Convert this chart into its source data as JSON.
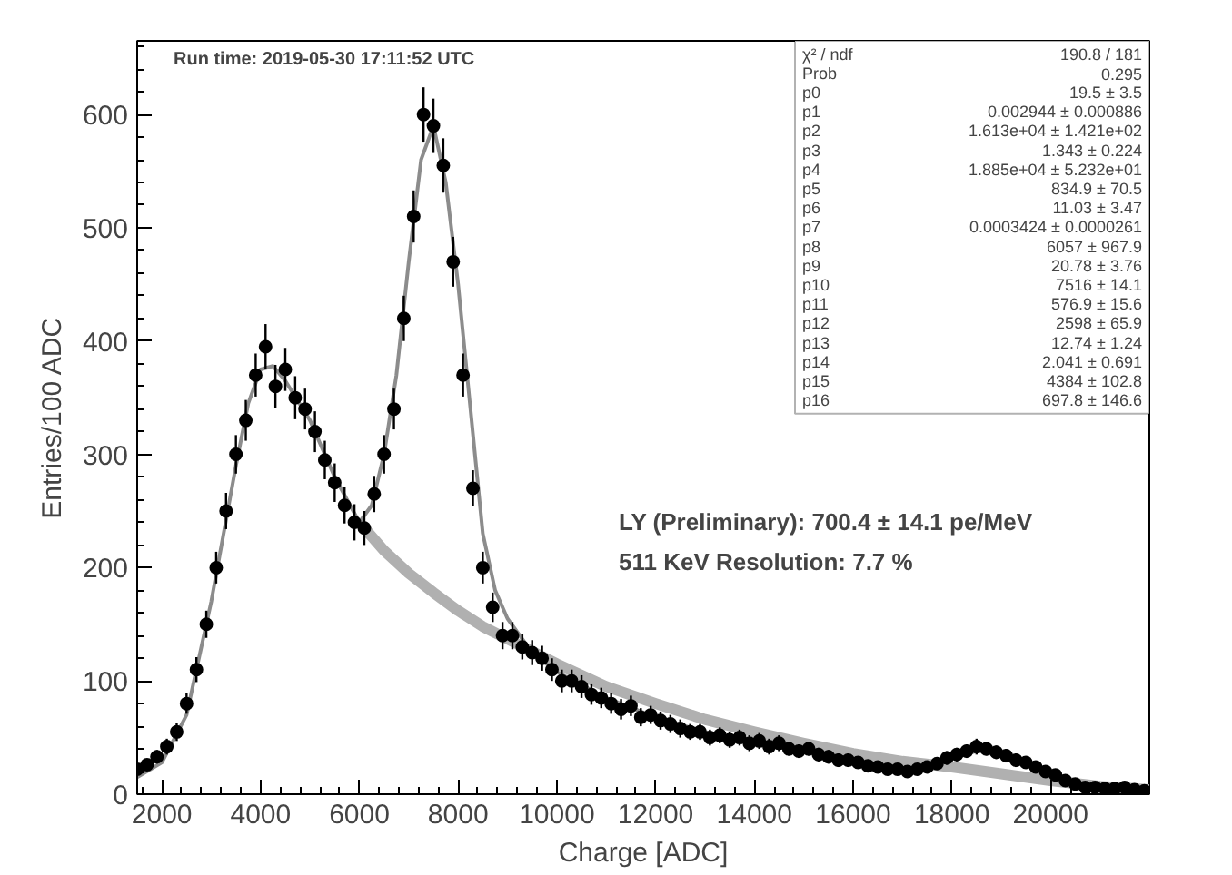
{
  "chart_data": {
    "type": "scatter",
    "xlabel": "Charge [ADC]",
    "ylabel": "Entries/100 ADC",
    "xlim": [
      1500,
      22000
    ],
    "ylim": [
      0,
      665
    ],
    "xticks": [
      2000,
      4000,
      6000,
      8000,
      10000,
      12000,
      14000,
      16000,
      18000,
      20000
    ],
    "yticks": [
      0,
      100,
      200,
      300,
      400,
      500,
      600
    ],
    "series": [
      {
        "marker": "circle",
        "color": "#000000",
        "x": [
          1500,
          1700,
          1900,
          2100,
          2300,
          2500,
          2700,
          2900,
          3100,
          3300,
          3500,
          3700,
          3900,
          4100,
          4300,
          4500,
          4700,
          4900,
          5100,
          5300,
          5500,
          5700,
          5900,
          6100,
          6300,
          6500,
          6700,
          6900,
          7100,
          7300,
          7500,
          7700,
          7900,
          8100,
          8300,
          8500,
          8700,
          8900,
          9100,
          9300,
          9500,
          9700,
          9900,
          10100,
          10300,
          10500,
          10700,
          10900,
          11100,
          11300,
          11500,
          11700,
          11900,
          12100,
          12300,
          12500,
          12700,
          12900,
          13100,
          13300,
          13500,
          13700,
          13900,
          14100,
          14300,
          14500,
          14700,
          14900,
          15100,
          15300,
          15500,
          15700,
          15900,
          16100,
          16300,
          16500,
          16700,
          16900,
          17100,
          17300,
          17500,
          17700,
          17900,
          18100,
          18300,
          18500,
          18700,
          18900,
          19100,
          19300,
          19500,
          19700,
          19900,
          20100,
          20300,
          20500,
          20700,
          20900,
          21100,
          21300,
          21500,
          21700,
          21900
        ],
        "values": [
          22,
          26,
          33,
          42,
          55,
          80,
          110,
          150,
          200,
          250,
          300,
          330,
          370,
          395,
          360,
          375,
          350,
          340,
          320,
          295,
          275,
          255,
          240,
          235,
          265,
          300,
          340,
          420,
          510,
          600,
          590,
          555,
          470,
          370,
          270,
          200,
          165,
          140,
          140,
          130,
          125,
          120,
          110,
          100,
          100,
          95,
          88,
          85,
          80,
          75,
          78,
          68,
          70,
          65,
          62,
          58,
          55,
          55,
          50,
          52,
          48,
          50,
          45,
          47,
          42,
          45,
          40,
          38,
          40,
          35,
          33,
          30,
          30,
          28,
          25,
          24,
          22,
          22,
          20,
          22,
          24,
          27,
          32,
          35,
          38,
          42,
          40,
          37,
          34,
          30,
          28,
          24,
          20,
          17,
          12,
          9,
          6,
          6,
          5,
          5,
          6,
          4,
          3
        ],
        "errors": [
          5,
          5,
          6,
          7,
          8,
          9,
          11,
          12,
          14,
          16,
          17,
          18,
          19,
          20,
          19,
          19,
          19,
          18,
          18,
          17,
          17,
          16,
          16,
          15,
          16,
          17,
          18,
          20,
          23,
          24,
          24,
          24,
          22,
          19,
          16,
          14,
          13,
          12,
          12,
          11,
          11,
          11,
          10,
          10,
          10,
          10,
          9,
          9,
          9,
          9,
          9,
          8,
          8,
          8,
          8,
          8,
          7,
          7,
          7,
          7,
          7,
          7,
          7,
          7,
          7,
          7,
          6,
          6,
          6,
          6,
          6,
          6,
          6,
          5,
          5,
          5,
          5,
          5,
          5,
          5,
          5,
          5,
          6,
          6,
          6,
          7,
          6,
          6,
          6,
          6,
          5,
          5,
          5,
          4,
          4,
          3,
          3,
          3,
          3,
          3,
          3,
          2,
          2
        ]
      },
      {
        "type": "line",
        "color": "#b0b0b0",
        "x": [
          6000,
          6500,
          7000,
          7500,
          8000,
          8500,
          9000,
          10000,
          11000,
          12000,
          13000,
          14000,
          15000,
          16000,
          17000,
          18000,
          19000,
          20000,
          21000,
          22000
        ],
        "values": [
          240,
          215,
          195,
          178,
          162,
          148,
          137,
          115,
          95,
          80,
          66,
          55,
          45,
          36,
          29,
          24,
          18,
          12,
          7,
          4
        ]
      },
      {
        "type": "line",
        "color": "#8c8c8c",
        "x": [
          1500,
          2000,
          2500,
          3000,
          3500,
          3750,
          4000,
          4250,
          4500,
          5000,
          5500,
          6000,
          6250,
          6500,
          6750,
          7000,
          7250,
          7500,
          7750,
          8000,
          8250,
          8500,
          8750,
          9000,
          9500,
          10000,
          11000,
          12000,
          13000,
          14000,
          15000,
          16000,
          17000,
          17500,
          18000,
          18500,
          19000,
          19500,
          20000,
          20500,
          21000,
          21900
        ],
        "values": [
          15,
          28,
          70,
          170,
          290,
          345,
          375,
          378,
          365,
          330,
          280,
          240,
          255,
          300,
          370,
          470,
          560,
          590,
          540,
          450,
          340,
          230,
          180,
          155,
          125,
          108,
          85,
          68,
          55,
          47,
          40,
          30,
          23,
          24,
          32,
          38,
          36,
          28,
          18,
          8,
          4,
          2
        ]
      }
    ],
    "annotations": [
      "Run time: 2019-05-30 17:11:52 UTC",
      "LY (Preliminary): 700.4 ± 14.1 pe/MeV",
      "511 KeV Resolution: 7.7 %",
      "χ² / ndf",
      "190.8 / 181",
      "Prob",
      "0.295",
      "p0",
      "19.5 ± 3.5",
      "p1",
      "0.002944 ± 0.000886",
      "p2",
      "1.613e+04 ± 1.421e+02",
      "p3",
      "1.343 ± 0.224",
      "p4",
      "1.885e+04 ± 5.232e+01",
      "p5",
      "834.9 ± 70.5",
      "p6",
      "11.03 ± 3.47",
      "p7",
      "0.0003424 ± 0.0000261",
      "p8",
      "6057 ± 967.9",
      "p9",
      "20.78 ± 3.76",
      "p10",
      "7516 ± 14.1",
      "p11",
      "576.9 ± 15.6",
      "p12",
      "2598 ± 65.9",
      "p13",
      "12.74 ± 1.24",
      "p14",
      "2.041 ± 0.691",
      "p15",
      "4384 ± 102.8",
      "p16",
      "697.8 ± 146.6"
    ]
  }
}
